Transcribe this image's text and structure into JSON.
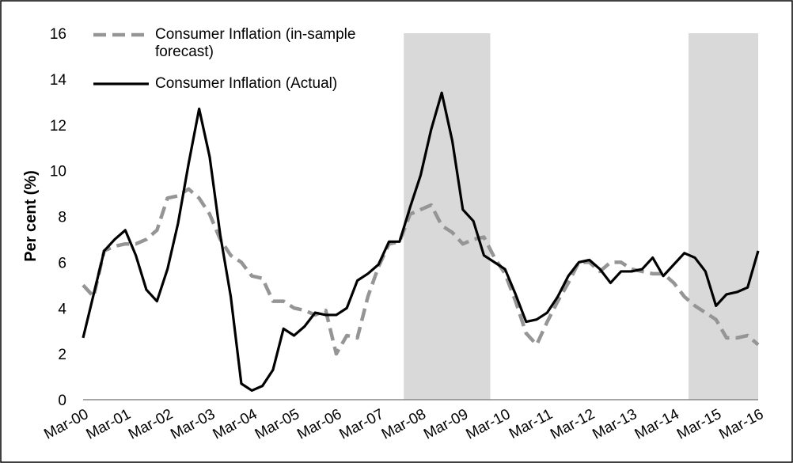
{
  "chart_data": {
    "type": "line",
    "ylabel": "Per cent (%)",
    "categories": [
      "Mar-00",
      null,
      null,
      null,
      "Mar-01",
      null,
      null,
      null,
      "Mar-02",
      null,
      null,
      null,
      "Mar-03",
      null,
      null,
      null,
      "Mar-04",
      null,
      null,
      null,
      "Mar-05",
      null,
      null,
      null,
      "Mar-06",
      null,
      null,
      null,
      "Mar-07",
      null,
      null,
      null,
      "Mar-08",
      null,
      null,
      null,
      "Mar-09",
      null,
      null,
      null,
      "Mar-10",
      null,
      null,
      null,
      "Mar-11",
      null,
      null,
      null,
      "Mar-12",
      null,
      null,
      null,
      "Mar-13",
      null,
      null,
      null,
      "Mar-14",
      null,
      null,
      null,
      "Mar-15",
      null,
      null,
      null,
      "Mar-16"
    ],
    "series": [
      {
        "name": "Consumer Inflation (in-sample forecast)",
        "color": "#959595",
        "dash": true,
        "values": [
          5.0,
          4.5,
          6.5,
          6.7,
          6.8,
          6.8,
          7.0,
          7.4,
          8.8,
          8.9,
          9.2,
          8.8,
          8.1,
          7.0,
          6.3,
          6.0,
          5.4,
          5.3,
          4.3,
          4.3,
          4.0,
          3.9,
          3.7,
          3.9,
          2.0,
          2.8,
          2.7,
          4.5,
          5.8,
          6.8,
          6.9,
          8.1,
          8.3,
          8.5,
          7.6,
          7.3,
          6.8,
          7.0,
          7.1,
          6.2,
          5.5,
          4.3,
          2.9,
          2.4,
          3.4,
          4.3,
          5.1,
          6.0,
          6.0,
          5.6,
          6.0,
          6.0,
          5.7,
          5.6,
          5.5,
          5.5,
          5.1,
          4.5,
          4.1,
          3.8,
          3.5,
          2.7,
          2.7,
          2.8,
          2.4
        ]
      },
      {
        "name": "Consumer Inflation (Actual)",
        "color": "#000000",
        "dash": false,
        "values": [
          2.7,
          4.6,
          6.5,
          7.0,
          7.4,
          6.3,
          4.8,
          4.3,
          5.7,
          7.7,
          10.3,
          12.7,
          10.6,
          7.2,
          4.5,
          0.7,
          0.4,
          0.6,
          1.3,
          3.1,
          2.8,
          3.2,
          3.8,
          3.7,
          3.7,
          4.0,
          5.2,
          5.5,
          5.9,
          6.9,
          6.9,
          8.4,
          9.8,
          11.8,
          13.4,
          11.3,
          8.3,
          7.8,
          6.3,
          6.0,
          5.7,
          4.6,
          3.4,
          3.5,
          3.8,
          4.5,
          5.4,
          6.0,
          6.1,
          5.7,
          5.1,
          5.6,
          5.6,
          5.7,
          6.2,
          5.4,
          5.9,
          6.4,
          6.2,
          5.6,
          4.1,
          4.6,
          4.7,
          4.9,
          6.5
        ]
      }
    ],
    "shaded_ranges": [
      [
        30.4,
        38.6
      ],
      [
        57.4,
        64
      ]
    ],
    "shade_color": "#d9d9d9",
    "ylim": [
      0,
      16
    ],
    "yticks": [
      0,
      2,
      4,
      6,
      8,
      10,
      12,
      14,
      16
    ],
    "grid": false,
    "legend": "top-left"
  }
}
